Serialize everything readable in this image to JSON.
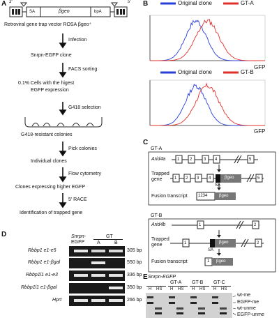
{
  "panels": {
    "A": "A",
    "B": "B",
    "C": "C",
    "D": "D",
    "E": "E"
  },
  "panel_a": {
    "vector": {
      "ltr_left": "3'",
      "ltr_right": "5'",
      "sa": "SA",
      "bgeo": "βgeo",
      "bpa": "bpA"
    },
    "steps": [
      "Retroviral gene trap vector ROSA βgeo⁺",
      "Snrpn-EGFP clone",
      "0.1% Cells with the higest",
      "EGFP expression",
      "G418-resistant colonies",
      "Individual clones",
      "Clones expressing higher EGFP",
      "Identification of trapped gene"
    ],
    "actions": [
      "Infection",
      "FACS sorting",
      "G418 selection",
      "Pick colonies",
      "Flow cytometry",
      "5' RACE"
    ]
  },
  "panel_b": {
    "plot1": {
      "legend_original": "Original clone",
      "legend_gt": "GT-A",
      "xlabel": "GFP"
    },
    "plot2": {
      "legend_original": "Original clone",
      "legend_gt": "GT-B",
      "xlabel": "GFP"
    },
    "colors": {
      "original": "#2a3fd8",
      "gt": "#e0302a"
    }
  },
  "panel_c": {
    "gt_a": {
      "title": "GT-A",
      "gene": "Arid4a",
      "wt_exons": [
        "1",
        "2",
        "3",
        "4",
        "5"
      ],
      "trapped_label_1": "Trapped",
      "trapped_label_2": "gene",
      "trapped_exons": [
        "1",
        "2",
        "3",
        "4",
        "5"
      ],
      "sa": "SA",
      "bgeo": "βgeo",
      "fusion_label": "Fusion transcript",
      "fusion_exons": "1234",
      "fusion_bgeo": "βgeo"
    },
    "gt_b": {
      "title": "GT-B",
      "gene": "Arid4b",
      "wt_exons": [
        "1",
        "2"
      ],
      "trapped_label_1": "Trapped",
      "trapped_label_2": "gene",
      "trapped_exons": [
        "1",
        "2"
      ],
      "sa": "SA",
      "bgeo": "βgeo",
      "fusion_label": "Fusion transcript",
      "fusion_exons": "1",
      "fusion_bgeo": "βgeo"
    }
  },
  "panel_d": {
    "col_header_1": "Snrpn-",
    "col_header_2": "EGFP",
    "gt": "GT",
    "lane_a": "A",
    "lane_b": "B",
    "rows": [
      {
        "label": "Rbbp1 e1-e5",
        "size": "305 bp"
      },
      {
        "label": "Rbbp1 e1-βgal",
        "size": "550 bp"
      },
      {
        "label": "Rbbp1l1 e1-e3",
        "size": "336 bp"
      },
      {
        "label": "Rbbp1l1 e1-βgal",
        "size": "350 bp"
      },
      {
        "label": "Hprt",
        "size": "266 bp"
      }
    ]
  },
  "panel_e": {
    "groups": [
      "Snrpn-EGFP",
      "GT-A",
      "GT-B",
      "GT-C"
    ],
    "lanes": [
      "H",
      "HS",
      "H",
      "HS",
      "H",
      "HS",
      "H",
      "HS"
    ],
    "bands": [
      "wt-me",
      "EGFP-me",
      "wt-unme",
      "EGFP-unme"
    ]
  }
}
